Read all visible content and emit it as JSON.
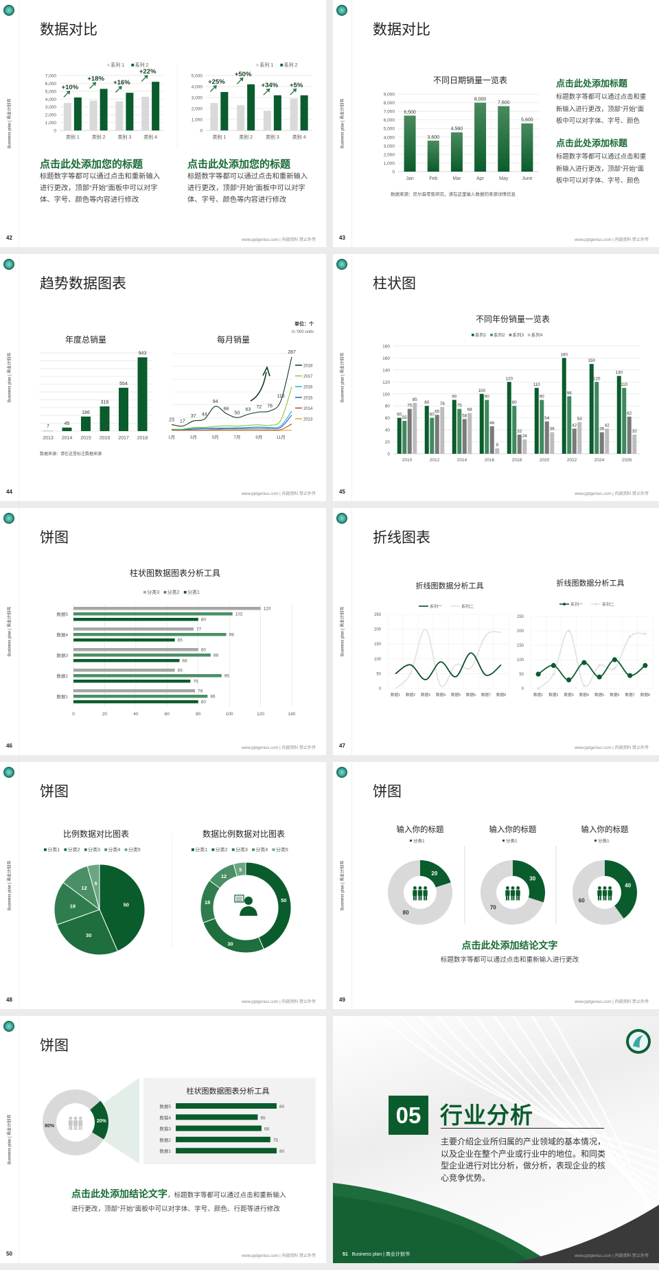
{
  "common": {
    "side_label": "Business plan | 商业计划书",
    "footer": "www.pptgenius.com | 内部资料 禁止外传",
    "accent": "#0a5c2c"
  },
  "slides": {
    "s42": {
      "page": "42",
      "title": "数据对比",
      "left": {
        "heading": "点击此处添加您的标题",
        "body": "标题数字等都可以通过点击和重新输入进行更改，顶部“开始”面板中可以对字体、字号、颜色等内容进行修改"
      },
      "right": {
        "heading": "点击此处添加您的标题",
        "body": "标题数字等都可以通过点击和重新输入进行更改，顶部“开始”面板中可以对字体、字号、颜色等内容进行修改"
      }
    },
    "s43": {
      "page": "43",
      "title": "数据对比",
      "source": "数据来源：尼尔森零售研究，请在这里输入数据的来源详情信息",
      "blocks": [
        {
          "heading": "点击此处添加标题",
          "body": "标题数字等都可以通过点击和重新输入进行更改，顶部“开始”面板中可以对字体、字号、颜色"
        },
        {
          "heading": "点击此处添加标题",
          "body": "标题数字等都可以通过点击和重新输入进行更改，顶部“开始”面板中可以对字体、字号、颜色"
        }
      ]
    },
    "s44": {
      "page": "44",
      "title": "趋势数据图表",
      "source": "数据来源：请在这里标注数据来源",
      "unit": "单位：个",
      "unit_en": "in '000 units"
    },
    "s45": {
      "page": "45",
      "title": "柱状图"
    },
    "s46": {
      "page": "46",
      "title": "饼图"
    },
    "s47": {
      "page": "47",
      "title": "折线图表"
    },
    "s48": {
      "page": "48",
      "title": "饼图"
    },
    "s49": {
      "page": "49",
      "title": "饼图",
      "conclusion": "点击此处添加结论文字",
      "body": "标题数字等都可以通过点击和重新输入进行更改"
    },
    "s50": {
      "page": "50",
      "title": "饼图",
      "conclusion": "点击此处添加结论文字",
      "body": "，标题数字等都可以通过点击和重新输入进行更改，顶部“开始”面板中可以对字体、字号、颜色、行距等进行修改"
    },
    "s51": {
      "page": "51",
      "number": "05",
      "title": "行业分析",
      "footer_label": "Business plan | 商业计划书",
      "body": "主要介绍企业所归属的产业领域的基本情况，以及企业在整个产业或行业中的地位。和同类型企业进行对比分析，做分析，表现企业的核心竞争优势。"
    }
  },
  "chart_data": [
    {
      "type": "bar",
      "categories": [
        "类别 1",
        "类别 2",
        "类别 3",
        "类别 4"
      ],
      "ylim": [
        0,
        7000
      ],
      "ystep": 1000,
      "grid": true,
      "legend": "top-right",
      "series": [
        {
          "name": "系列 1",
          "color": "#d9d9d9",
          "values": [
            3500,
            3800,
            3700,
            4300
          ]
        },
        {
          "name": "系列 2",
          "color": "#0a5c2c",
          "values": [
            4200,
            5300,
            4800,
            6200
          ]
        }
      ],
      "annotations": [
        "+10%",
        "+18%",
        "+16%",
        "+22%"
      ]
    },
    {
      "type": "bar",
      "categories": [
        "类别 1",
        "类别 2",
        "类别 3",
        "类别 4"
      ],
      "ylim": [
        0,
        5000
      ],
      "ystep": 1000,
      "grid": true,
      "legend": "top-right",
      "series": [
        {
          "name": "系列 1",
          "color": "#d9d9d9",
          "values": [
            2500,
            2300,
            1800,
            2900
          ]
        },
        {
          "name": "系列 2",
          "color": "#0a5c2c",
          "values": [
            3500,
            4200,
            3200,
            3200
          ]
        }
      ],
      "annotations": [
        "+25%",
        "+50%",
        "+34%",
        "+5%"
      ]
    },
    {
      "type": "bar",
      "title": "不同日期销量一览表",
      "categories": [
        "Jan",
        "Feb",
        "Mar",
        "Apr",
        "May",
        "June"
      ],
      "ylim": [
        0,
        9000
      ],
      "ystep": 1000,
      "grid": true,
      "series": [
        {
          "color": "#0a5c2c",
          "values": [
            6500,
            3600,
            4560,
            8000,
            7600,
            5600
          ]
        }
      ]
    },
    {
      "type": "bar",
      "title": "年度总销量",
      "categories": [
        "2013",
        "2014",
        "2015",
        "2016",
        "2017",
        "2018"
      ],
      "ylim": [
        0,
        1000
      ],
      "ystep": 100,
      "grid": true,
      "series": [
        {
          "color": "#0a5c2c",
          "values": [
            7,
            45,
            186,
            316,
            554,
            943
          ]
        }
      ]
    },
    {
      "type": "line",
      "title": "每月销量",
      "x": [
        "1月",
        "2月",
        "3月",
        "4月",
        "5月",
        "6月",
        "7月",
        "8月",
        "9月",
        "10月",
        "11月",
        "12月"
      ],
      "xticks": [
        "1月",
        "3月",
        "5月",
        "7月",
        "9月",
        "11月"
      ],
      "ylim": [
        0,
        300
      ],
      "grid": true,
      "legend": "right",
      "series": [
        {
          "name": "2018",
          "color": "#0d3b1e",
          "values": [
            23,
            17,
            37,
            44,
            94,
            66,
            50,
            63,
            72,
            76,
            115,
            287
          ],
          "labels": true
        },
        {
          "name": "2017",
          "color": "#8cc63f",
          "values": [
            5,
            5,
            12,
            12,
            16,
            18,
            17,
            20,
            22,
            20,
            40,
            170
          ]
        },
        {
          "name": "2016",
          "color": "#29abe2",
          "values": [
            4,
            4,
            8,
            9,
            10,
            10,
            11,
            12,
            14,
            12,
            18,
            75
          ]
        },
        {
          "name": "2015",
          "color": "#1f5fa8",
          "values": [
            3,
            3,
            5,
            6,
            6,
            7,
            7,
            8,
            9,
            8,
            12,
            60
          ]
        },
        {
          "name": "2014",
          "color": "#b5482a",
          "values": [
            1,
            1,
            1,
            1,
            2,
            2,
            2,
            2,
            2,
            2,
            3,
            25
          ]
        },
        {
          "name": "2013",
          "color": "#f0a030",
          "values": [
            0,
            0,
            0,
            0,
            0,
            0,
            0,
            0,
            0,
            0,
            0,
            1
          ]
        }
      ]
    },
    {
      "type": "bar",
      "title": "不同年份销量一览表",
      "categories": [
        "2010",
        "2012",
        "2014",
        "2016",
        "2018",
        "2020",
        "2022",
        "2024",
        "2026"
      ],
      "ylim": [
        0,
        180
      ],
      "ystep": 20,
      "grid": true,
      "legend": "top",
      "series": [
        {
          "name": "系列1",
          "color": "#0a5c2c",
          "values": [
            60,
            80,
            90,
            100,
            120,
            110,
            160,
            150,
            130
          ]
        },
        {
          "name": "系列2",
          "color": "#3d8a5e",
          "values": [
            55,
            60,
            75,
            90,
            80,
            90,
            96,
            120,
            110
          ]
        },
        {
          "name": "系列3",
          "color": "#7a7a7a",
          "values": [
            75,
            65,
            58,
            46,
            32,
            54,
            42,
            36,
            62
          ]
        },
        {
          "name": "系列4",
          "color": "#bdbdbd",
          "values": [
            85,
            78,
            68,
            9,
            24,
            36,
            53,
            42,
            32
          ]
        }
      ]
    },
    {
      "type": "bar",
      "orientation": "horizontal",
      "title": "柱状图数据图表分析工具",
      "categories": [
        "数据5",
        "数据4",
        "数据3",
        "数据2",
        "数据1"
      ],
      "xlim": [
        0,
        140
      ],
      "xstep": 20,
      "grid": true,
      "legend": "top",
      "series": [
        {
          "name": "分类3",
          "color": "#a6a6a6",
          "values": [
            120,
            77,
            80,
            65,
            78
          ]
        },
        {
          "name": "分类2",
          "color": "#4a8f66",
          "values": [
            102,
            98,
            88,
            95,
            86
          ]
        },
        {
          "name": "分类1",
          "color": "#0a5c2c",
          "values": [
            80,
            65,
            68,
            75,
            80
          ]
        }
      ]
    },
    {
      "type": "line",
      "title": "折线图数据分析工具",
      "x": [
        "数据1",
        "数据2",
        "数据3",
        "数据4",
        "数据5",
        "数据6",
        "数据7",
        "数据8"
      ],
      "ylim": [
        0,
        250
      ],
      "ystep": 50,
      "grid": true,
      "legend": "top",
      "markers": false,
      "series": [
        {
          "name": "系列一",
          "color": "#0a4d26",
          "values": [
            50,
            80,
            30,
            90,
            40,
            120,
            45,
            80
          ]
        },
        {
          "name": "系列二",
          "color": "#e3e3e3",
          "values": [
            0,
            50,
            200,
            10,
            80,
            70,
            180,
            190
          ]
        }
      ]
    },
    {
      "type": "line",
      "title": "折线图数据分析工具",
      "x": [
        "数据1",
        "数据2",
        "数据3",
        "数据4",
        "数据5",
        "数据6",
        "数据7",
        "数据8"
      ],
      "ylim": [
        0,
        250
      ],
      "ystep": 50,
      "grid": true,
      "legend": "top",
      "markers": true,
      "series": [
        {
          "name": "系列一",
          "color": "#0a5c2c",
          "values": [
            50,
            80,
            30,
            90,
            40,
            100,
            45,
            80
          ]
        },
        {
          "name": "系列二",
          "color": "#e3e3e3",
          "values": [
            0,
            50,
            200,
            10,
            80,
            70,
            180,
            190
          ]
        }
      ]
    },
    {
      "type": "pie",
      "title": "比例数据对比图表",
      "legend": "top",
      "categories": [
        "分类1",
        "分类2",
        "分类3",
        "分类4",
        "分类5"
      ],
      "values": [
        50,
        30,
        18,
        12,
        5
      ],
      "colors": [
        "#0a5c2c",
        "#1e6e3e",
        "#2f7d4e",
        "#4a8f66",
        "#6aa683"
      ]
    },
    {
      "type": "pie",
      "donut": true,
      "title": "数据比例数据对比图表",
      "legend": "top",
      "categories": [
        "分类1",
        "分类2",
        "分类3",
        "分类4",
        "分类5"
      ],
      "values": [
        50,
        30,
        18,
        12,
        5
      ],
      "colors": [
        "#0a5c2c",
        "#1e6e3e",
        "#2f7d4e",
        "#4a8f66",
        "#6aa683"
      ],
      "center_icon": "presenter-icon"
    },
    {
      "type": "pie",
      "donut": true,
      "title": "输入你的标题",
      "legend": "top",
      "legend_label": "分类1",
      "values": [
        20,
        80
      ],
      "colors": [
        "#0a5c2c",
        "#d9d9d9"
      ],
      "center_icon": "people-icon"
    },
    {
      "type": "pie",
      "donut": true,
      "title": "输入你的标题",
      "legend": "top",
      "legend_label": "分类1",
      "values": [
        30,
        70
      ],
      "colors": [
        "#0a5c2c",
        "#d9d9d9"
      ],
      "center_icon": "people-icon"
    },
    {
      "type": "pie",
      "donut": true,
      "title": "输入你的标题",
      "legend": "top",
      "legend_label": "分类1",
      "values": [
        40,
        60
      ],
      "colors": [
        "#0a5c2c",
        "#d9d9d9"
      ],
      "center_icon": "people-icon"
    },
    {
      "type": "pie",
      "donut": true,
      "values": [
        20,
        80
      ],
      "labels": [
        "20%",
        "80%"
      ],
      "colors": [
        "#0a5c2c",
        "#d9d9d9"
      ],
      "center_icon": "team-icon"
    },
    {
      "type": "bar",
      "orientation": "horizontal",
      "title": "柱状图数据图表分析工具",
      "categories": [
        "数据5",
        "数据4",
        "数据3",
        "数据2",
        "数据1"
      ],
      "xlim": [
        0,
        80
      ],
      "series": [
        {
          "color": "#0a5c2c",
          "values": [
            80,
            65,
            68,
            75,
            80
          ]
        }
      ]
    }
  ]
}
